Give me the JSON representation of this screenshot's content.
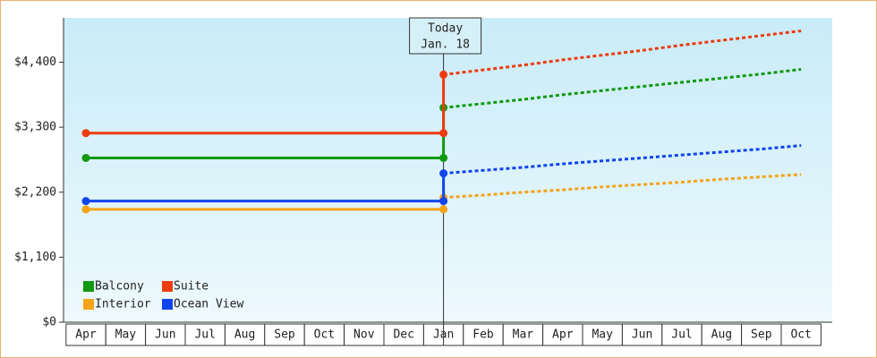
{
  "chart_data": {
    "type": "line",
    "annotation": {
      "title": "Today",
      "date": "Jan. 18",
      "category_index": 9
    },
    "categories": [
      "Apr",
      "May",
      "Jun",
      "Jul",
      "Aug",
      "Sep",
      "Oct",
      "Nov",
      "Dec",
      "Jan",
      "Feb",
      "Mar",
      "Apr",
      "May",
      "Jun",
      "Jul",
      "Aug",
      "Sep",
      "Oct"
    ],
    "series": [
      {
        "name": "Balcony",
        "color": "#119911",
        "values": [
          2780,
          2780,
          2780,
          2780,
          2780,
          2780,
          2780,
          2780,
          2780,
          2780,
          null,
          null,
          null,
          null,
          null,
          null,
          null,
          null,
          null
        ],
        "projected": [
          null,
          null,
          null,
          null,
          null,
          null,
          null,
          null,
          null,
          3630,
          3700,
          3770,
          3850,
          3920,
          3990,
          4060,
          4130,
          4200,
          4280
        ]
      },
      {
        "name": "Suite",
        "color": "#ee3b11",
        "values": [
          3200,
          3200,
          3200,
          3200,
          3200,
          3200,
          3200,
          3200,
          3200,
          3200,
          null,
          null,
          null,
          null,
          null,
          null,
          null,
          null,
          null
        ],
        "projected": [
          null,
          null,
          null,
          null,
          null,
          null,
          null,
          null,
          null,
          4190,
          4270,
          4350,
          4440,
          4520,
          4600,
          4690,
          4770,
          4850,
          4930
        ]
      },
      {
        "name": "Interior",
        "color": "#f5a318",
        "values": [
          1910,
          1910,
          1910,
          1910,
          1910,
          1910,
          1910,
          1910,
          1910,
          1910,
          null,
          null,
          null,
          null,
          null,
          null,
          null,
          null,
          null
        ],
        "projected": [
          null,
          null,
          null,
          null,
          null,
          null,
          null,
          null,
          null,
          2110,
          2150,
          2200,
          2240,
          2290,
          2330,
          2370,
          2420,
          2460,
          2500
        ]
      },
      {
        "name": "Ocean View",
        "color": "#1144ee",
        "values": [
          2050,
          2050,
          2050,
          2050,
          2050,
          2050,
          2050,
          2050,
          2050,
          2050,
          null,
          null,
          null,
          null,
          null,
          null,
          null,
          null,
          null
        ],
        "projected": [
          null,
          null,
          null,
          null,
          null,
          null,
          null,
          null,
          null,
          2520,
          2570,
          2620,
          2680,
          2730,
          2780,
          2830,
          2880,
          2930,
          2990
        ]
      }
    ],
    "ylim": [
      0,
      5150
    ],
    "yticks": [
      {
        "value": 0,
        "label": "$0"
      },
      {
        "value": 1100,
        "label": "$1,100"
      },
      {
        "value": 2200,
        "label": "$2,200"
      },
      {
        "value": 3300,
        "label": "$3,300"
      },
      {
        "value": 4400,
        "label": "$4,400"
      }
    ],
    "grid": false
  }
}
